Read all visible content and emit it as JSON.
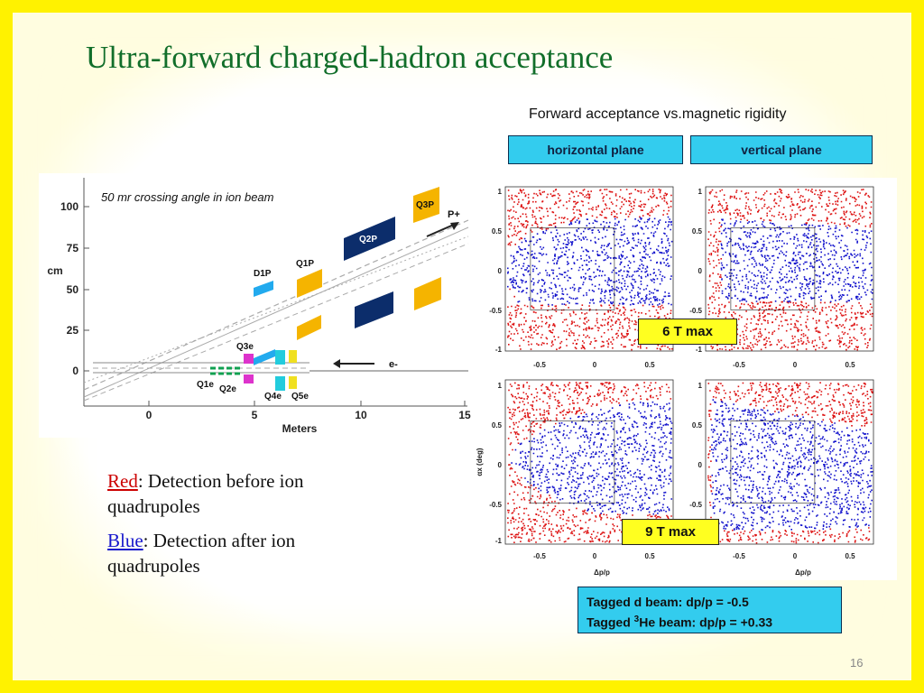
{
  "slide": {
    "title": "Ultra-forward charged-hadron acceptance",
    "subtitle": "Forward acceptance vs.magnetic rigidity",
    "page_number": "16"
  },
  "planes": {
    "horizontal": "horizontal plane",
    "vertical": "vertical plane"
  },
  "layout_diagram": {
    "caption": "50 mr crossing angle in ion beam",
    "y_axis_label": "cm",
    "x_axis_label": "Meters",
    "y_ticks": [
      "100",
      "75",
      "50",
      "25",
      "0"
    ],
    "x_ticks": [
      "0",
      "5",
      "10",
      "15"
    ],
    "magnet_labels": [
      "Q3P",
      "Q2P",
      "Q1P",
      "D1P",
      "Q3e",
      "Q1e",
      "Q2e",
      "Q4e",
      "Q5e"
    ],
    "beam_labels": [
      "P+",
      "e-"
    ],
    "colors": {
      "quad_orange": "#f5b400",
      "dipole_cyan": "#22aaee",
      "q2p_navy": "#0c2d6b",
      "q3e_magenta": "#dd33cc",
      "quad_yellow": "#f0e020",
      "electron_green": "#10a050"
    }
  },
  "legend": {
    "red_word": "Red",
    "red_text": ": Detection before ion quadrupoles",
    "blue_word": "Blue",
    "blue_text": ": Detection after ion quadrupoles",
    "colors": {
      "red": "#cc0000",
      "blue": "#1515cc"
    }
  },
  "acceptance_plots": {
    "y_ticks": [
      "1",
      "0.5",
      "0",
      "-0.5",
      "-1"
    ],
    "x_ticks": [
      "-0.5",
      "0",
      "0.5"
    ],
    "x_axis_label": "Δp/p",
    "y_axis_label": "αx (deg)",
    "field_labels": [
      "6 T max",
      "9 T max"
    ],
    "colors": {
      "detected_before": "#dd1111",
      "detected_after": "#1111cc"
    }
  },
  "beam_info": {
    "line1": "Tagged d beam: dp/p = -0.5",
    "line2_prefix": "Tagged ",
    "line2_sup": "3",
    "line2_suffix": "He beam: dp/p = +0.33"
  }
}
